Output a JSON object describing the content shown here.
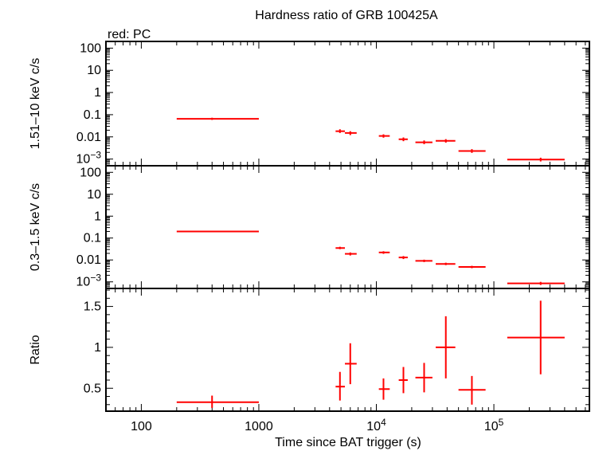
{
  "chart_data": {
    "title": "Hardness ratio of GRB 100425A",
    "legend_label": "red: PC",
    "series_color": "#ff0000",
    "xlabel": "Time since BAT trigger (s)",
    "xscale": "log",
    "xlim": [
      50,
      650000
    ],
    "x_ticks": [
      {
        "value": 100,
        "label": "100",
        "sup": ""
      },
      {
        "value": 1000,
        "label": "1000",
        "sup": ""
      },
      {
        "value": 10000,
        "label": "10",
        "sup": "4"
      },
      {
        "value": 100000,
        "label": "10",
        "sup": "5"
      }
    ],
    "panels": [
      {
        "id": "hard",
        "type": "scatter",
        "ylabel": "1.51–10 keV c/s",
        "yscale": "log",
        "ylim": [
          0.0005,
          200
        ],
        "y_ticks": [
          {
            "value": 100,
            "label": "100",
            "sup": ""
          },
          {
            "value": 10,
            "label": "10",
            "sup": ""
          },
          {
            "value": 1,
            "label": "1",
            "sup": ""
          },
          {
            "value": 0.1,
            "label": "0.1",
            "sup": ""
          },
          {
            "value": 0.01,
            "label": "0.01",
            "sup": ""
          },
          {
            "value": 0.001,
            "label": "10",
            "sup": "−3"
          }
        ],
        "points": [
          {
            "x": 400,
            "xlo": 200,
            "xhi": 1000,
            "y": 0.065,
            "ylo": 0.058,
            "yhi": 0.073
          },
          {
            "x": 4900,
            "xlo": 4500,
            "xhi": 5400,
            "y": 0.018,
            "ylo": 0.015,
            "yhi": 0.022
          },
          {
            "x": 6000,
            "xlo": 5400,
            "xhi": 6800,
            "y": 0.015,
            "ylo": 0.012,
            "yhi": 0.018
          },
          {
            "x": 11500,
            "xlo": 10500,
            "xhi": 13000,
            "y": 0.011,
            "ylo": 0.0092,
            "yhi": 0.013
          },
          {
            "x": 17000,
            "xlo": 15500,
            "xhi": 18500,
            "y": 0.0078,
            "ylo": 0.0064,
            "yhi": 0.0094
          },
          {
            "x": 25500,
            "xlo": 21500,
            "xhi": 30000,
            "y": 0.0057,
            "ylo": 0.0047,
            "yhi": 0.0069
          },
          {
            "x": 39000,
            "xlo": 32000,
            "xhi": 47000,
            "y": 0.0066,
            "ylo": 0.0055,
            "yhi": 0.0079
          },
          {
            "x": 65000,
            "xlo": 50000,
            "xhi": 85000,
            "y": 0.0023,
            "ylo": 0.0019,
            "yhi": 0.0028
          },
          {
            "x": 250000,
            "xlo": 130000,
            "xhi": 400000,
            "y": 0.00095,
            "ylo": 0.00078,
            "yhi": 0.00115
          }
        ]
      },
      {
        "id": "soft",
        "type": "scatter",
        "ylabel": "0.3–1.5 keV c/s",
        "yscale": "log",
        "ylim": [
          0.0005,
          200
        ],
        "y_ticks": [
          {
            "value": 100,
            "label": "100",
            "sup": ""
          },
          {
            "value": 10,
            "label": "10",
            "sup": ""
          },
          {
            "value": 1,
            "label": "1",
            "sup": ""
          },
          {
            "value": 0.1,
            "label": "0.1",
            "sup": ""
          },
          {
            "value": 0.01,
            "label": "0.01",
            "sup": ""
          },
          {
            "value": 0.001,
            "label": "10",
            "sup": "−3"
          }
        ],
        "points": [
          {
            "x": 400,
            "xlo": 200,
            "xhi": 1000,
            "y": 0.2,
            "ylo": 0.185,
            "yhi": 0.215
          },
          {
            "x": 4900,
            "xlo": 4500,
            "xhi": 5400,
            "y": 0.035,
            "ylo": 0.031,
            "yhi": 0.04
          },
          {
            "x": 6000,
            "xlo": 5400,
            "xhi": 6800,
            "y": 0.019,
            "ylo": 0.016,
            "yhi": 0.022
          },
          {
            "x": 11500,
            "xlo": 10500,
            "xhi": 13000,
            "y": 0.022,
            "ylo": 0.019,
            "yhi": 0.025
          },
          {
            "x": 17000,
            "xlo": 15500,
            "xhi": 18500,
            "y": 0.013,
            "ylo": 0.011,
            "yhi": 0.015
          },
          {
            "x": 25500,
            "xlo": 21500,
            "xhi": 30000,
            "y": 0.0091,
            "ylo": 0.008,
            "yhi": 0.0103
          },
          {
            "x": 39000,
            "xlo": 32000,
            "xhi": 47000,
            "y": 0.0066,
            "ylo": 0.0058,
            "yhi": 0.0075
          },
          {
            "x": 65000,
            "xlo": 50000,
            "xhi": 85000,
            "y": 0.0048,
            "ylo": 0.0042,
            "yhi": 0.0054
          },
          {
            "x": 250000,
            "xlo": 130000,
            "xhi": 400000,
            "y": 0.00085,
            "ylo": 0.00072,
            "yhi": 0.001
          }
        ]
      },
      {
        "id": "ratio",
        "type": "scatter",
        "ylabel": "Ratio",
        "yscale": "linear",
        "ylim": [
          0.22,
          1.72
        ],
        "y_ticks": [
          {
            "value": 1.5,
            "label": "1.5",
            "sup": ""
          },
          {
            "value": 1,
            "label": "1",
            "sup": ""
          },
          {
            "value": 0.5,
            "label": "0.5",
            "sup": ""
          }
        ],
        "points": [
          {
            "x": 400,
            "xlo": 200,
            "xhi": 1000,
            "y": 0.33,
            "ylo": 0.26,
            "yhi": 0.41
          },
          {
            "x": 4900,
            "xlo": 4500,
            "xhi": 5400,
            "y": 0.52,
            "ylo": 0.35,
            "yhi": 0.7
          },
          {
            "x": 6000,
            "xlo": 5400,
            "xhi": 6800,
            "y": 0.8,
            "ylo": 0.55,
            "yhi": 1.05
          },
          {
            "x": 11500,
            "xlo": 10500,
            "xhi": 13000,
            "y": 0.49,
            "ylo": 0.36,
            "yhi": 0.62
          },
          {
            "x": 17000,
            "xlo": 15500,
            "xhi": 18500,
            "y": 0.6,
            "ylo": 0.44,
            "yhi": 0.76
          },
          {
            "x": 25500,
            "xlo": 21500,
            "xhi": 30000,
            "y": 0.63,
            "ylo": 0.45,
            "yhi": 0.81
          },
          {
            "x": 39000,
            "xlo": 32000,
            "xhi": 47000,
            "y": 1.0,
            "ylo": 0.62,
            "yhi": 1.38
          },
          {
            "x": 65000,
            "xlo": 50000,
            "xhi": 85000,
            "y": 0.48,
            "ylo": 0.3,
            "yhi": 0.65
          },
          {
            "x": 250000,
            "xlo": 130000,
            "xhi": 400000,
            "y": 1.12,
            "ylo": 0.67,
            "yhi": 1.57
          }
        ]
      }
    ]
  }
}
